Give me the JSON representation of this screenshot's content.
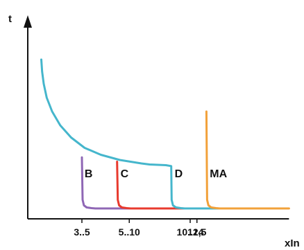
{
  "chart_data": {
    "type": "line",
    "title": "",
    "xlabel": "xIn",
    "ylabel": "t",
    "grid": false,
    "legend": "none",
    "x_ticks": [
      {
        "label": "3..5",
        "value": 4
      },
      {
        "label": "5..10",
        "value": 7.5
      },
      {
        "label": "10..14",
        "value": 12
      },
      {
        "label": "12,5",
        "value": 12.5
      }
    ],
    "x_extra": {
      "origin": 0,
      "curve_start": 1,
      "axis_end": 19.3
    },
    "y_extra": {
      "axis_top": 11.6,
      "asymptote": 0.6,
      "tail_end": 0.6
    },
    "series": [
      {
        "name": "B",
        "color": "#8f67b5",
        "x": [
          4,
          4.05,
          4.15,
          4.35,
          4.7,
          5,
          19
        ],
        "y": [
          3.55,
          1.1,
          0.78,
          0.66,
          0.62,
          0.6,
          0.6
        ]
      },
      {
        "name": "C",
        "color": "#e83a2e",
        "x": [
          6.6,
          6.65,
          6.75,
          6.95,
          7.3,
          7.6,
          19
        ],
        "y": [
          3.3,
          1.1,
          0.78,
          0.66,
          0.62,
          0.6,
          0.6
        ]
      },
      {
        "name": "D",
        "color": "#45b6cc",
        "x": [
          1,
          1.06,
          1.18,
          1.4,
          1.8,
          2.4,
          3.2,
          4.2,
          5.4,
          6.8,
          8.4,
          9,
          10.2,
          10.6,
          10.63,
          10.73,
          10.95,
          11.3,
          11.6,
          19
        ],
        "y": [
          9.2,
          8.5,
          7.8,
          7.0,
          6.2,
          5.4,
          4.7,
          4.1,
          3.7,
          3.4,
          3.2,
          3.14,
          3.1,
          3.05,
          1.1,
          0.78,
          0.66,
          0.62,
          0.6,
          0.6
        ]
      },
      {
        "name": "MA",
        "color": "#f2a13a",
        "x": [
          13.2,
          13.25,
          13.35,
          13.55,
          13.9,
          14.2,
          19.3
        ],
        "y": [
          6.2,
          1.1,
          0.78,
          0.66,
          0.62,
          0.6,
          0.6
        ]
      }
    ],
    "annotations": [
      {
        "text": "B",
        "x": 4.2,
        "y": 2.4
      },
      {
        "text": "C",
        "x": 6.85,
        "y": 2.4
      },
      {
        "text": "D",
        "x": 10.85,
        "y": 2.4
      },
      {
        "text": "MA",
        "x": 13.45,
        "y": 2.4
      }
    ]
  }
}
